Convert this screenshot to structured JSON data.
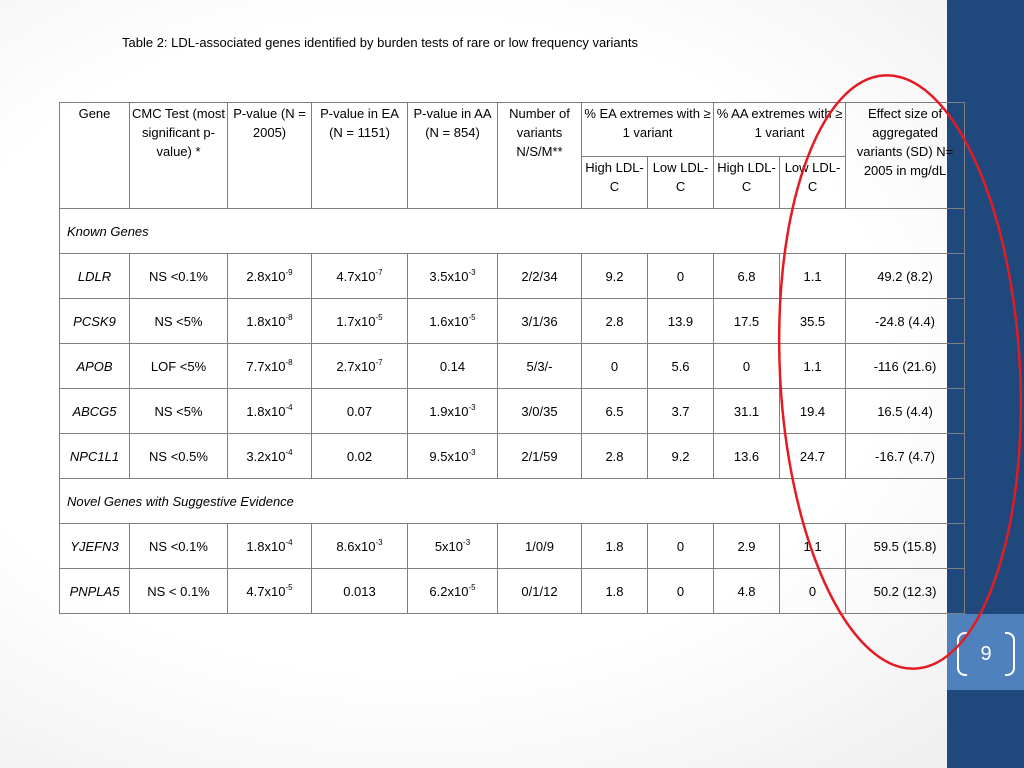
{
  "caption": "Table 2:  LDL-associated genes identified by burden tests of rare or low frequency variants",
  "headers": {
    "gene": "Gene",
    "cmc": "CMC Test (most significant p-value) *",
    "p_all": "P-value (N = 2005)",
    "p_ea": "P-value in EA (N = 1151)",
    "p_aa": "P-value in AA (N = 854)",
    "nvar": "Number of variants N/S/M**",
    "ea_ext": "% EA extremes with ≥ 1 variant",
    "aa_ext": "% AA extremes with ≥ 1 variant",
    "effect": "Effect size of aggregated variants (SD) N= 2005 in mg/dL",
    "high": "High LDL-C",
    "low": "Low LDL-C"
  },
  "sections": {
    "known": "Known Genes",
    "novel": "Novel Genes with Suggestive Evidence"
  },
  "rows": [
    {
      "gene": "LDLR",
      "cmc": "NS <0.1%",
      "p_all": {
        "m": "2.8x10",
        "e": "-9"
      },
      "p_ea": {
        "m": "4.7x10",
        "e": "-7"
      },
      "p_aa": {
        "m": "3.5x10",
        "e": "-3"
      },
      "nvar": "2/2/34",
      "ea_high": "9.2",
      "ea_low": "0",
      "aa_high": "6.8",
      "aa_low": "1.1",
      "effect": "49.2 (8.2)"
    },
    {
      "gene": "PCSK9",
      "cmc": "NS <5%",
      "p_all": {
        "m": "1.8x10",
        "e": "-8"
      },
      "p_ea": {
        "m": "1.7x10",
        "e": "-5"
      },
      "p_aa": {
        "m": "1.6x10",
        "e": "-5"
      },
      "nvar": "3/1/36",
      "ea_high": "2.8",
      "ea_low": "13.9",
      "aa_high": "17.5",
      "aa_low": "35.5",
      "effect": "-24.8 (4.4)"
    },
    {
      "gene": "APOB",
      "cmc": "LOF <5%",
      "p_all": {
        "m": "7.7x10",
        "e": "-8"
      },
      "p_ea": {
        "m": "2.7x10",
        "e": "-7"
      },
      "p_aa": {
        "m": "0.14",
        "e": ""
      },
      "nvar": "5/3/-",
      "ea_high": "0",
      "ea_low": "5.6",
      "aa_high": "0",
      "aa_low": "1.1",
      "effect": "-116 (21.6)"
    },
    {
      "gene": "ABCG5",
      "cmc": "NS <5%",
      "p_all": {
        "m": "1.8x10",
        "e": "-4"
      },
      "p_ea": {
        "m": "0.07",
        "e": ""
      },
      "p_aa": {
        "m": "1.9x10",
        "e": "-3"
      },
      "nvar": "3/0/35",
      "ea_high": "6.5",
      "ea_low": "3.7",
      "aa_high": "31.1",
      "aa_low": "19.4",
      "effect": "16.5 (4.4)"
    },
    {
      "gene": "NPC1L1",
      "cmc": "NS <0.5%",
      "p_all": {
        "m": "3.2x10",
        "e": "-4"
      },
      "p_ea": {
        "m": "0.02",
        "e": ""
      },
      "p_aa": {
        "m": "9.5x10",
        "e": "-3"
      },
      "nvar": "2/1/59",
      "ea_high": "2.8",
      "ea_low": "9.2",
      "aa_high": "13.6",
      "aa_low": "24.7",
      "effect": "-16.7 (4.7)"
    },
    {
      "gene": "YJEFN3",
      "cmc": "NS <0.1%",
      "p_all": {
        "m": "1.8x10",
        "e": "-4"
      },
      "p_ea": {
        "m": "8.6x10",
        "e": "-3"
      },
      "p_aa": {
        "m": "5x10",
        "e": "-3"
      },
      "nvar": "1/0/9",
      "ea_high": "1.8",
      "ea_low": "0",
      "aa_high": "2.9",
      "aa_low": "1.1",
      "effect": "59.5 (15.8)"
    },
    {
      "gene": "PNPLA5",
      "cmc": "NS < 0.1%",
      "p_all": {
        "m": "4.7x10",
        "e": "-5"
      },
      "p_ea": {
        "m": "0.013",
        "e": ""
      },
      "p_aa": {
        "m": "6.2x10",
        "e": "-5"
      },
      "nvar": "0/1/12",
      "ea_high": "1.8",
      "ea_low": "0",
      "aa_high": "4.8",
      "aa_low": "0",
      "effect": "50.2 (12.3)"
    }
  ],
  "slide": {
    "page_number": "9",
    "sidebar_color": "#1f497d",
    "band_color": "#4f81bd",
    "annotation_color": "#e31b23"
  }
}
